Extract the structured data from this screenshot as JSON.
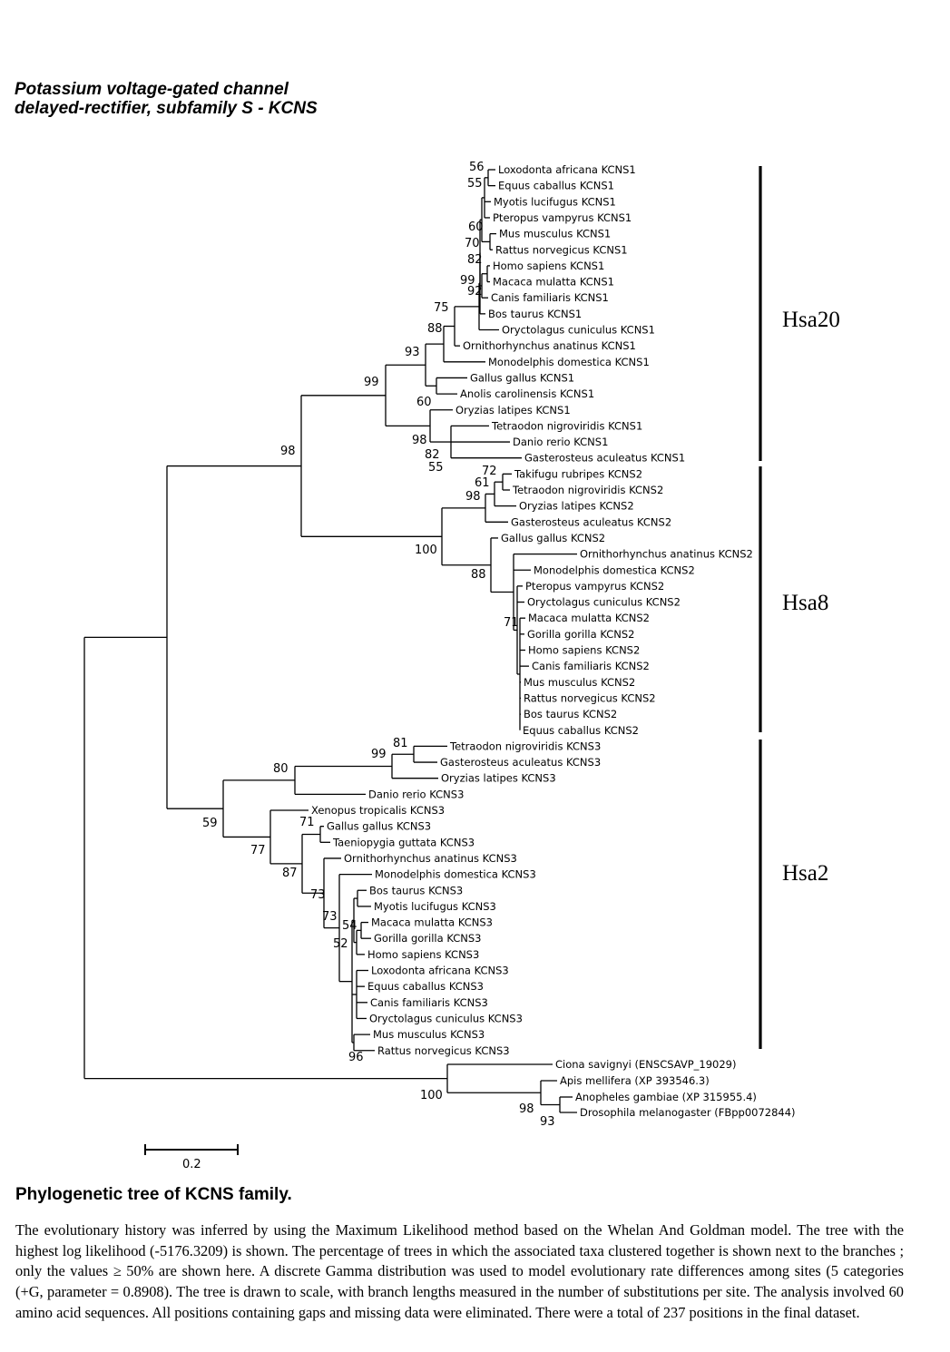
{
  "title": {
    "line1": "Potassium voltage-gated channel",
    "line2": "delayed-rectifier, subfamily S - KCNS"
  },
  "tree": {
    "taxa": [
      "Loxodonta africana KCNS1",
      "Equus caballus KCNS1",
      "Myotis lucifugus KCNS1",
      "Pteropus vampyrus KCNS1",
      "Mus musculus KCNS1",
      "Rattus norvegicus KCNS1",
      "Homo sapiens KCNS1",
      "Macaca mulatta KCNS1",
      "Canis familiaris KCNS1",
      "Bos taurus KCNS1",
      "Oryctolagus cuniculus KCNS1",
      "Ornithorhynchus anatinus KCNS1",
      "Monodelphis domestica KCNS1",
      "Gallus gallus KCNS1",
      "Anolis carolinensis KCNS1",
      "Oryzias latipes KCNS1",
      "Tetraodon nigroviridis KCNS1",
      "Danio rerio KCNS1",
      "Gasterosteus aculeatus KCNS1",
      "Takifugu rubripes KCNS2",
      "Tetraodon nigroviridis KCNS2",
      "Oryzias latipes KCNS2",
      "Gasterosteus aculeatus KCNS2",
      "Gallus gallus KCNS2",
      "Ornithorhynchus anatinus KCNS2",
      "Monodelphis domestica KCNS2",
      "Pteropus vampyrus KCNS2",
      "Oryctolagus cuniculus KCNS2",
      "Macaca mulatta KCNS2",
      "Gorilla gorilla KCNS2",
      "Homo sapiens KCNS2",
      "Canis familiaris KCNS2",
      "Mus musculus KCNS2",
      "Rattus norvegicus KCNS2",
      "Bos taurus KCNS2",
      "Equus caballus KCNS2",
      "Tetraodon nigroviridis KCNS3",
      "Gasterosteus aculeatus KCNS3",
      "Oryzias latipes KCNS3",
      "Danio rerio KCNS3",
      "Xenopus tropicalis KCNS3",
      "Gallus gallus KCNS3",
      "Taeniopygia guttata KCNS3",
      "Ornithorhynchus anatinus KCNS3",
      "Monodelphis domestica KCNS3",
      "Bos taurus KCNS3",
      "Myotis lucifugus KCNS3",
      "Macaca mulatta KCNS3",
      "Gorilla gorilla KCNS3",
      "Homo sapiens KCNS3",
      "Loxodonta africana KCNS3",
      "Equus caballus KCNS3",
      "Canis familiaris KCNS3",
      "Oryctolagus cuniculus KCNS3",
      "Mus musculus KCNS3",
      "Rattus norvegicus KCNS3",
      "Ciona savignyi (ENSCSAVP_19029)",
      "Apis mellifera (XP 393546.3)",
      "Anopheles gambiae (XP 315955.4)",
      "Drosophila melanogaster (FBpp0072844)"
    ],
    "bootstrap": [
      "56",
      "55",
      "60",
      "70",
      "82",
      "99",
      "92",
      "75",
      "88",
      "93",
      "99",
      "60",
      "98",
      "82",
      "55",
      "98",
      "72",
      "61",
      "98",
      "100",
      "88",
      "71",
      "81",
      "99",
      "80",
      "71",
      "77",
      "87",
      "73",
      "73",
      "54",
      "52",
      "96",
      "59",
      "100",
      "98",
      "93"
    ],
    "clades": [
      "Hsa20",
      "Hsa8",
      "Hsa2"
    ],
    "scale_label": "0.2"
  },
  "caption": {
    "heading": "Phylogenetic tree of KCNS family.",
    "text": "The evolutionary history was inferred by using the Maximum Likelihood method based on the Whelan And Goldman model. The tree with the highest log likelihood (-5176.3209) is shown. The percentage of trees in which the associated taxa clustered together is shown next to the branches ; only the values ≥ 50% are shown here. A discrete Gamma distribution was used to model evolutionary rate differences among sites (5 categories (+G, parameter = 0.8908). The tree is drawn to scale, with branch lengths measured in the number of substitutions per site. The analysis involved 60 amino acid sequences. All positions containing gaps and missing data were eliminated. There were a total of 237 positions in the final dataset."
  }
}
